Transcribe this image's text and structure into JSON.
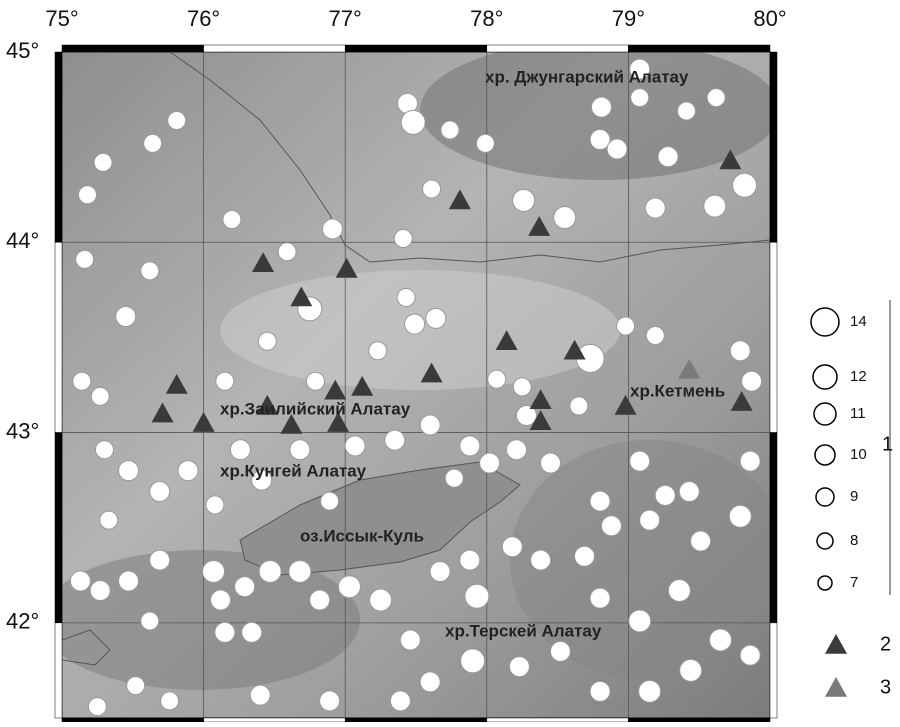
{
  "map": {
    "lonlim": [
      75,
      80
    ],
    "latlim": [
      41.5,
      45
    ],
    "lon_ticks": [
      {
        "value": 75,
        "label": "75°"
      },
      {
        "value": 76,
        "label": "76°"
      },
      {
        "value": 77,
        "label": "77°"
      },
      {
        "value": 78,
        "label": "78°"
      },
      {
        "value": 79,
        "label": "79°"
      },
      {
        "value": 80,
        "label": "80°"
      }
    ],
    "lat_ticks": [
      {
        "value": 45,
        "label": "45°"
      },
      {
        "value": 44,
        "label": "44°"
      },
      {
        "value": 43,
        "label": "43°"
      },
      {
        "value": 42,
        "label": "42°"
      }
    ],
    "places": [
      "хр. Джунгарский Алатау",
      "хр.Кетмень",
      "хр.Заилийский Алатау",
      "хр.Кунгей Алатау",
      "оз.Иссык-Куль",
      "хр.Терскей Алатау"
    ],
    "event_color": "#ffffff",
    "station_2_color": "#3a3a3a",
    "station_3_color": "#7a7a7a",
    "events": [
      [
        75.18,
        44.25,
        9
      ],
      [
        75.29,
        44.42,
        9
      ],
      [
        75.64,
        44.52,
        9
      ],
      [
        75.81,
        44.64,
        9
      ],
      [
        75.16,
        43.91,
        9
      ],
      [
        75.62,
        43.85,
        9
      ],
      [
        75.45,
        43.61,
        10
      ],
      [
        76.2,
        44.12,
        9
      ],
      [
        76.59,
        43.95,
        9
      ],
      [
        76.91,
        44.07,
        10
      ],
      [
        76.75,
        43.65,
        12
      ],
      [
        76.45,
        43.48,
        9
      ],
      [
        77.44,
        44.73,
        10
      ],
      [
        77.48,
        44.63,
        12
      ],
      [
        77.74,
        44.59,
        9
      ],
      [
        77.61,
        44.28,
        9
      ],
      [
        77.41,
        44.02,
        9
      ],
      [
        77.99,
        44.52,
        9
      ],
      [
        78.26,
        44.22,
        11
      ],
      [
        78.55,
        44.13,
        11
      ],
      [
        78.8,
        44.54,
        10
      ],
      [
        78.92,
        44.49,
        10
      ],
      [
        79.08,
        44.91,
        10
      ],
      [
        79.28,
        44.45,
        10
      ],
      [
        79.41,
        44.69,
        9
      ],
      [
        79.62,
        44.76,
        9
      ],
      [
        79.82,
        44.3,
        12
      ],
      [
        79.19,
        44.18,
        10
      ],
      [
        79.61,
        44.19,
        11
      ],
      [
        78.81,
        44.71,
        10
      ],
      [
        79.08,
        44.76,
        9
      ],
      [
        77.43,
        43.71,
        9
      ],
      [
        77.49,
        43.57,
        10
      ],
      [
        77.64,
        43.6,
        10
      ],
      [
        77.23,
        43.43,
        9
      ],
      [
        78.07,
        43.28,
        9
      ],
      [
        78.25,
        43.24,
        9
      ],
      [
        78.73,
        43.39,
        14
      ],
      [
        78.98,
        43.56,
        9
      ],
      [
        79.19,
        43.51,
        9
      ],
      [
        79.79,
        43.43,
        10
      ],
      [
        79.87,
        43.27,
        10
      ],
      [
        78.65,
        43.14,
        9
      ],
      [
        78.28,
        43.09,
        10
      ],
      [
        77.88,
        42.93,
        10
      ],
      [
        78.02,
        42.84,
        10
      ],
      [
        77.77,
        42.76,
        9
      ],
      [
        78.21,
        42.91,
        10
      ],
      [
        78.45,
        42.84,
        10
      ],
      [
        78.8,
        42.64,
        10
      ],
      [
        79.08,
        42.85,
        10
      ],
      [
        79.26,
        42.67,
        10
      ],
      [
        79.43,
        42.69,
        10
      ],
      [
        79.86,
        42.85,
        10
      ],
      [
        79.79,
        42.56,
        11
      ],
      [
        79.51,
        42.43,
        10
      ],
      [
        79.15,
        42.54,
        10
      ],
      [
        78.88,
        42.51,
        10
      ],
      [
        78.69,
        42.35,
        10
      ],
      [
        78.38,
        42.33,
        10
      ],
      [
        78.18,
        42.4,
        10
      ],
      [
        77.88,
        42.33,
        10
      ],
      [
        77.67,
        42.27,
        10
      ],
      [
        77.93,
        42.14,
        12
      ],
      [
        78.8,
        42.13,
        10
      ],
      [
        79.08,
        42.01,
        11
      ],
      [
        79.36,
        42.17,
        11
      ],
      [
        79.65,
        41.91,
        11
      ],
      [
        79.86,
        41.83,
        10
      ],
      [
        79.44,
        41.75,
        11
      ],
      [
        79.15,
        41.64,
        11
      ],
      [
        78.8,
        41.64,
        10
      ],
      [
        78.52,
        41.85,
        10
      ],
      [
        78.23,
        41.77,
        10
      ],
      [
        77.9,
        41.8,
        12
      ],
      [
        77.6,
        41.69,
        10
      ],
      [
        77.46,
        41.91,
        10
      ],
      [
        77.25,
        42.12,
        11
      ],
      [
        77.03,
        42.19,
        11
      ],
      [
        76.82,
        42.12,
        10
      ],
      [
        76.68,
        42.27,
        11
      ],
      [
        76.47,
        42.27,
        11
      ],
      [
        76.29,
        42.19,
        10
      ],
      [
        76.12,
        42.12,
        10
      ],
      [
        76.07,
        42.27,
        11
      ],
      [
        75.69,
        42.33,
        10
      ],
      [
        75.47,
        42.22,
        10
      ],
      [
        75.27,
        42.17,
        10
      ],
      [
        75.13,
        42.22,
        10
      ],
      [
        75.62,
        42.01,
        9
      ],
      [
        76.15,
        41.95,
        10
      ],
      [
        76.34,
        41.95,
        10
      ],
      [
        76.4,
        41.62,
        10
      ],
      [
        75.76,
        41.59,
        9
      ],
      [
        75.52,
        41.67,
        9
      ],
      [
        75.25,
        41.56,
        9
      ],
      [
        76.89,
        41.59,
        10
      ],
      [
        77.39,
        41.59,
        10
      ],
      [
        76.89,
        42.64,
        9
      ],
      [
        76.08,
        42.62,
        9
      ],
      [
        75.89,
        42.8,
        10
      ],
      [
        75.69,
        42.69,
        10
      ],
      [
        75.47,
        42.8,
        10
      ],
      [
        75.3,
        42.91,
        9
      ],
      [
        75.33,
        42.54,
        9
      ],
      [
        75.14,
        43.27,
        9
      ],
      [
        75.27,
        43.19,
        9
      ],
      [
        76.26,
        42.91,
        10
      ],
      [
        76.41,
        42.75,
        10
      ],
      [
        76.68,
        42.91,
        10
      ],
      [
        77.07,
        42.93,
        10
      ],
      [
        77.35,
        42.96,
        10
      ],
      [
        77.6,
        43.04,
        10
      ],
      [
        76.79,
        43.27,
        9
      ],
      [
        76.15,
        43.27,
        9
      ]
    ],
    "network_2": [
      [
        76.42,
        43.89
      ],
      [
        76.69,
        43.71
      ],
      [
        77.01,
        43.86
      ],
      [
        77.81,
        44.22
      ],
      [
        78.37,
        44.08
      ],
      [
        79.72,
        44.43
      ],
      [
        75.81,
        43.25
      ],
      [
        75.71,
        43.1
      ],
      [
        76.0,
        43.05
      ],
      [
        76.45,
        43.14
      ],
      [
        76.62,
        43.04
      ],
      [
        76.93,
        43.22
      ],
      [
        77.12,
        43.24
      ],
      [
        76.95,
        43.05
      ],
      [
        77.61,
        43.31
      ],
      [
        78.14,
        43.48
      ],
      [
        78.62,
        43.43
      ],
      [
        78.38,
        43.17
      ],
      [
        78.38,
        43.06
      ],
      [
        78.98,
        43.14
      ],
      [
        79.8,
        43.16
      ]
    ],
    "network_3": [
      [
        79.43,
        43.33
      ]
    ],
    "legend": {
      "sizes": [
        14,
        12,
        11,
        10,
        9,
        8,
        7
      ],
      "group_1": "1",
      "group_2": "2",
      "group_3": "3"
    }
  }
}
